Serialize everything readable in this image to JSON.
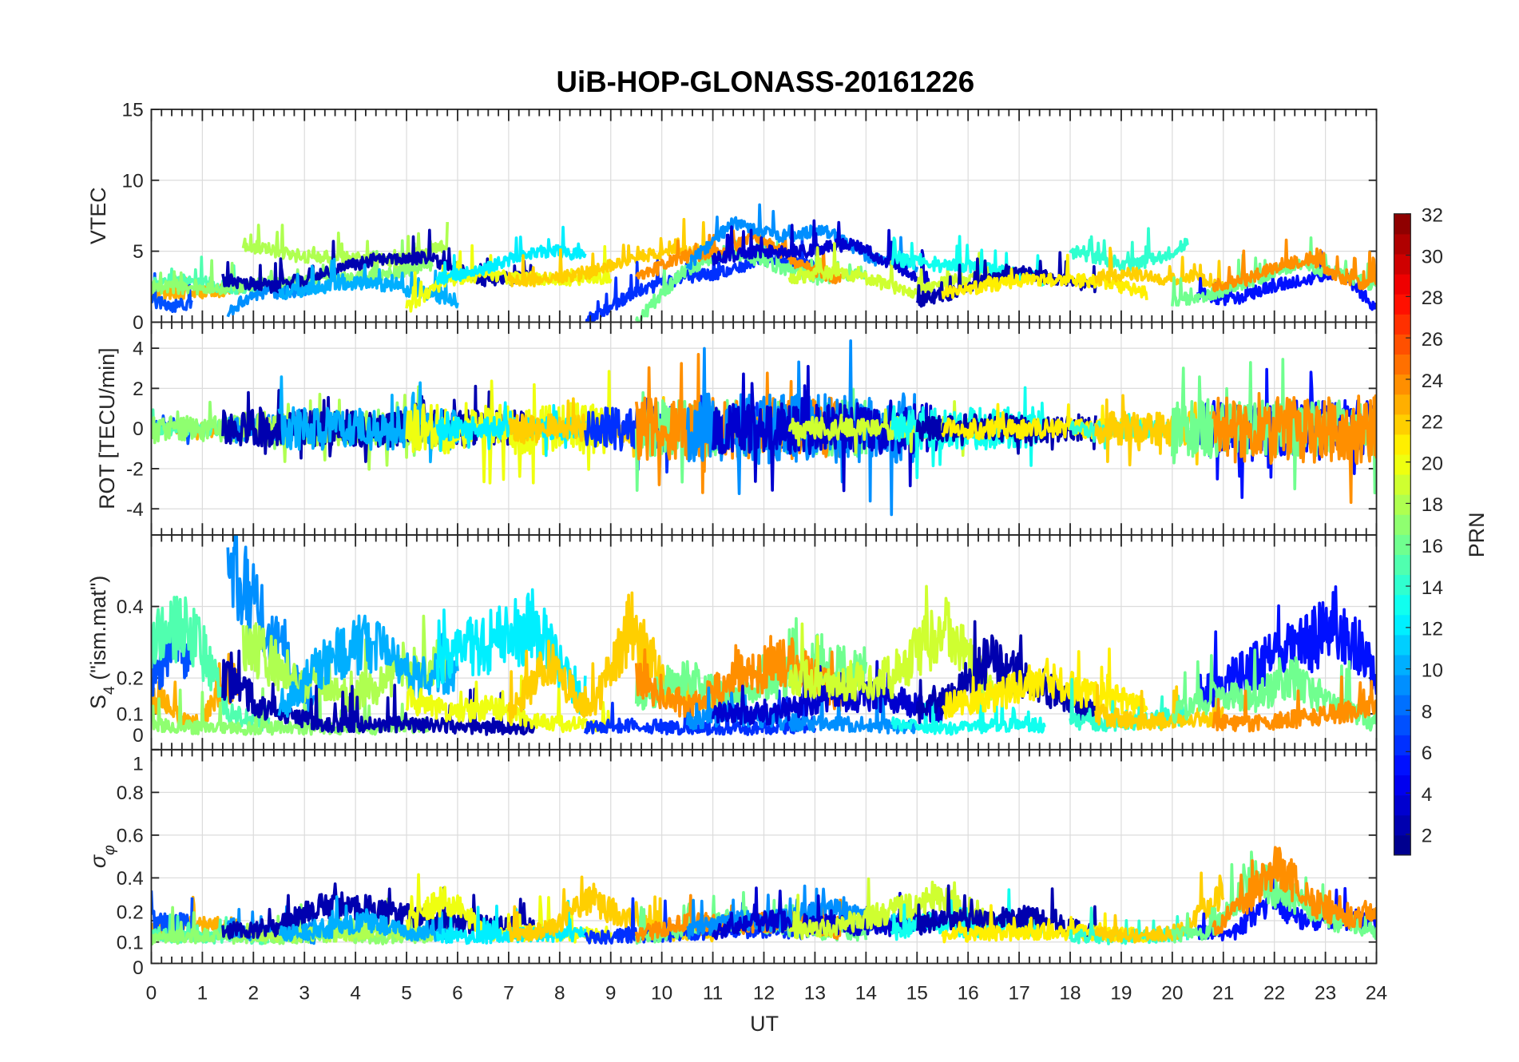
{
  "chart_data": {
    "type": "line",
    "title": "UiB-HOP-GLONASS-20161226",
    "xlabel": "UT",
    "xlim": [
      0,
      24
    ],
    "xticks": [
      "0",
      "1",
      "2",
      "3",
      "4",
      "5",
      "6",
      "7",
      "8",
      "9",
      "10",
      "11",
      "12",
      "13",
      "14",
      "15",
      "16",
      "17",
      "18",
      "19",
      "20",
      "21",
      "22",
      "23",
      "24"
    ],
    "grid": true,
    "panels": [
      {
        "key": "vtec",
        "ylabel": "VTEC",
        "ylim": [
          0,
          15
        ],
        "yticks": [
          {
            "v": 0,
            "t": "0"
          },
          {
            "v": 5,
            "t": "5"
          },
          {
            "v": 10,
            "t": "10"
          },
          {
            "v": 15,
            "t": "15"
          }
        ]
      },
      {
        "key": "rot",
        "ylabel": "ROT [TECU/min]",
        "ylim": [
          -5.3,
          5.3
        ],
        "yticks": [
          {
            "v": -4,
            "t": "-4"
          },
          {
            "v": -2,
            "t": "-2"
          },
          {
            "v": 0,
            "t": "0"
          },
          {
            "v": 2,
            "t": "2"
          },
          {
            "v": 4,
            "t": "4"
          }
        ]
      },
      {
        "key": "s4",
        "ylabel": "S4 (\"ism.mat\")",
        "ylabel_main": "S",
        "ylabel_sub": "4",
        "ylabel_rest": " (\"ism.mat\")",
        "ylim": [
          0,
          0.6
        ],
        "yticks": [
          {
            "v": 0,
            "t": "0"
          },
          {
            "v": 0.1,
            "t": "0.1"
          },
          {
            "v": 0.2,
            "t": "0.2"
          },
          {
            "v": 0.4,
            "t": "0.4"
          }
        ]
      },
      {
        "key": "sig",
        "ylabel": "σφ",
        "ylabel_main": "σ",
        "ylabel_sub": "φ",
        "ylim": [
          0,
          1
        ],
        "yticks": [
          {
            "v": 0,
            "t": "0"
          },
          {
            "v": 0.1,
            "t": "0.1"
          },
          {
            "v": 0.2,
            "t": "0.2"
          },
          {
            "v": 0.4,
            "t": "0.4"
          },
          {
            "v": 0.6,
            "t": "0.6"
          },
          {
            "v": 0.8,
            "t": "0.8"
          },
          {
            "v": 1,
            "t": "1"
          }
        ]
      }
    ],
    "colorbar": {
      "label": "PRN",
      "range": [
        1,
        32
      ],
      "ticks": [
        "2",
        "4",
        "6",
        "8",
        "10",
        "12",
        "14",
        "16",
        "18",
        "20",
        "22",
        "24",
        "26",
        "28",
        "30",
        "32"
      ]
    },
    "series": [
      {
        "prn": 23,
        "t": [
          0,
          1.7
        ],
        "vtec": [
          2,
          2.1,
          2.3
        ],
        "rot": 0.4,
        "s4": [
          0.15,
          0.07,
          0.2
        ],
        "sig": [
          0.15,
          0.18,
          0.17
        ]
      },
      {
        "prn": 7,
        "t": [
          0,
          0.8
        ],
        "vtec": [
          1.5,
          1.1,
          1.3
        ],
        "rot": 0.5,
        "s4": [
          0.2,
          0.3,
          0.25
        ],
        "sig": [
          0.2,
          0.18,
          0.2
        ]
      },
      {
        "prn": 15,
        "t": [
          0,
          2.3
        ],
        "vtec": [
          2.8,
          3,
          2.4,
          2.5
        ],
        "rot": 0.6,
        "s4": [
          0.3,
          0.35,
          0.1,
          0.07
        ],
        "sig": [
          0.14,
          0.12,
          0.13,
          0.12
        ]
      },
      {
        "prn": 17,
        "t": [
          0,
          5.5
        ],
        "vtec": [
          2.5,
          2.3,
          2.7,
          3,
          3.3,
          4
        ],
        "rot": 0.9,
        "s4": [
          0.07,
          0.06,
          0.06,
          0.06,
          0.06,
          0.07
        ],
        "sig": [
          0.12,
          0.13,
          0.12,
          0.13,
          0.12,
          0.13
        ]
      },
      {
        "prn": 9,
        "t": [
          1.5,
          3.2
        ],
        "vtec": [
          0.8,
          2,
          2.1,
          2.5
        ],
        "rot": 1,
        "s4": [
          0.55,
          0.4,
          0.25,
          0.12
        ],
        "sig": [
          0.16,
          0.14,
          0.14,
          0.12
        ]
      },
      {
        "prn": 18,
        "t": [
          1.8,
          5.8
        ],
        "vtec": [
          5.5,
          4.7,
          4.5,
          4.3,
          5.5
        ],
        "rot": 1.2,
        "s4": [
          0.3,
          0.2,
          0.15,
          0.2,
          0.25
        ],
        "sig": [
          0.15,
          0.13,
          0.14,
          0.15,
          0.14
        ]
      },
      {
        "prn": 2,
        "t": [
          1.4,
          7.5
        ],
        "vtec": [
          3,
          2.5,
          3.5,
          4.5,
          4.5,
          3,
          3.2
        ],
        "rot": 1.3,
        "s4": [
          0.2,
          0.1,
          0.07,
          0.07,
          0.07,
          0.06,
          0.06
        ],
        "sig": [
          0.15,
          0.17,
          0.27,
          0.25,
          0.2,
          0.18,
          0.17
        ]
      },
      {
        "prn": 10,
        "t": [
          2.5,
          6
        ],
        "vtec": [
          2,
          2.5,
          2.8,
          2.2,
          1.5
        ],
        "rot": 1.5,
        "s4": [
          0.1,
          0.25,
          0.3,
          0.2,
          0.2
        ],
        "sig": [
          0.14,
          0.15,
          0.2,
          0.14,
          0.13
        ]
      },
      {
        "prn": 20,
        "t": [
          5,
          9
        ],
        "vtec": [
          1,
          3,
          3.3,
          3,
          3,
          3.2
        ],
        "rot": 1.8,
        "s4": [
          0.15,
          0.1,
          0.12,
          0.08,
          0.07,
          0.07
        ],
        "sig": [
          0.2,
          0.3,
          0.14,
          0.14,
          0.13,
          0.14
        ]
      },
      {
        "prn": 12,
        "t": [
          5.6,
          8.5
        ],
        "vtec": [
          3,
          3.5,
          4.5,
          5,
          4.8
        ],
        "rot": 0.8,
        "s4": [
          0.25,
          0.3,
          0.35,
          0.12
        ],
        "sig": [
          0.13,
          0.12,
          0.14,
          0.13
        ]
      },
      {
        "prn": 22,
        "t": [
          7,
          11
        ],
        "vtec": [
          3,
          3,
          3.5,
          4.5,
          5,
          5
        ],
        "rot": 1,
        "s4": [
          0.1,
          0.25,
          0.1,
          0.35,
          0.15,
          0.12
        ],
        "sig": [
          0.13,
          0.16,
          0.3,
          0.2,
          0.14,
          0.14
        ]
      },
      {
        "prn": 6,
        "t": [
          8.5,
          13
        ],
        "vtec": [
          0,
          2,
          3,
          3.5,
          4.5,
          4
        ],
        "rot": 1.6,
        "s4": [
          0.06,
          0.07,
          0.06,
          0.06,
          0.06,
          0.07
        ],
        "sig": [
          0.12,
          0.13,
          0.14,
          0.15,
          0.16,
          0.15
        ]
      },
      {
        "prn": 16,
        "t": [
          9.5,
          14
        ],
        "vtec": [
          0,
          3.5,
          5,
          4,
          3,
          3.5
        ],
        "rot": 2,
        "s4": [
          0.15,
          0.2,
          0.15,
          0.2,
          0.25,
          0.2
        ],
        "sig": [
          0.12,
          0.15,
          0.2,
          0.18,
          0.15,
          0.14
        ]
      },
      {
        "prn": 24,
        "t": [
          9.5,
          13.5
        ],
        "vtec": [
          3,
          4.5,
          5,
          6,
          4,
          3
        ],
        "rot": 2.2,
        "s4": [
          0.2,
          0.12,
          0.2,
          0.25,
          0.15
        ],
        "sig": [
          0.13,
          0.2,
          0.18,
          0.2,
          0.15
        ]
      },
      {
        "prn": 9,
        "t": [
          10.5,
          15
        ],
        "vtec": [
          4,
          7,
          6,
          6.5,
          4.5,
          4
        ],
        "rot": 2.5,
        "s4": [
          0.08,
          0.1,
          0.08,
          0.07,
          0.07,
          0.06
        ],
        "sig": [
          0.15,
          0.2,
          0.2,
          0.25,
          0.2,
          0.18
        ]
      },
      {
        "prn": 3,
        "t": [
          11,
          15.5
        ],
        "vtec": [
          4.5,
          5,
          5,
          5.5,
          4,
          2
        ],
        "rot": 1.8,
        "s4": [
          0.1,
          0.1,
          0.15,
          0.15,
          0.1
        ],
        "sig": [
          0.15,
          0.2,
          0.18,
          0.17,
          0.2
        ]
      },
      {
        "prn": 19,
        "t": [
          12.5,
          16.5
        ],
        "vtec": [
          3,
          3.5,
          3,
          2,
          3,
          3
        ],
        "rot": 0.8,
        "s4": [
          0.2,
          0.18,
          0.2,
          0.35,
          0.15
        ],
        "sig": [
          0.15,
          0.17,
          0.25,
          0.3,
          0.15
        ]
      },
      {
        "prn": 13,
        "t": [
          14.5,
          17.5
        ],
        "vtec": [
          4.5,
          4,
          4,
          3.5,
          3
        ],
        "rot": 1.5,
        "s4": [
          0.07,
          0.06,
          0.06,
          0.07,
          0.07
        ],
        "sig": [
          0.14,
          0.2,
          0.16,
          0.18,
          0.16
        ]
      },
      {
        "prn": 2,
        "t": [
          15,
          18.5
        ],
        "vtec": [
          1.5,
          2,
          3,
          3.5,
          3,
          2.5
        ],
        "rot": 1,
        "s4": [
          0.1,
          0.15,
          0.25,
          0.2,
          0.15,
          0.1
        ],
        "sig": [
          0.18,
          0.2,
          0.2,
          0.22,
          0.18,
          0.15
        ]
      },
      {
        "prn": 21,
        "t": [
          15.5,
          19.5
        ],
        "vtec": [
          2,
          2.5,
          3,
          3,
          2.8,
          2
        ],
        "rot": 0.7,
        "s4": [
          0.12,
          0.15,
          0.2,
          0.15,
          0.12
        ],
        "sig": [
          0.13,
          0.14,
          0.15,
          0.14,
          0.13
        ]
      },
      {
        "prn": 14,
        "t": [
          18,
          20.3
        ],
        "vtec": [
          5,
          4.5,
          4,
          4.5,
          5.5
        ],
        "rot": 0.6,
        "s4": [
          0.08,
          0.07,
          0.08,
          0.1
        ],
        "sig": [
          0.13,
          0.12,
          0.13,
          0.14
        ]
      },
      {
        "prn": 22,
        "t": [
          18.5,
          21
        ],
        "vtec": [
          3,
          3.5,
          3,
          3.2,
          2.5
        ],
        "rot": 1.2,
        "s4": [
          0.1,
          0.08,
          0.08,
          0.1
        ],
        "sig": [
          0.14,
          0.13,
          0.15,
          0.35
        ]
      },
      {
        "prn": 5,
        "t": [
          20.5,
          24
        ],
        "vtec": [
          2,
          1.5,
          2.5,
          3,
          3.5,
          1
        ],
        "rot": 2,
        "s4": [
          0.15,
          0.2,
          0.25,
          0.3,
          0.35,
          0.2
        ],
        "sig": [
          0.15,
          0.14,
          0.3,
          0.2,
          0.2,
          0.2
        ]
      },
      {
        "prn": 16,
        "t": [
          20,
          24
        ],
        "vtec": [
          1.5,
          2,
          3,
          4,
          3.5,
          2.5
        ],
        "rot": 2,
        "s4": [
          0.1,
          0.15,
          0.15,
          0.2,
          0.12,
          0.07
        ],
        "sig": [
          0.13,
          0.15,
          0.4,
          0.3,
          0.2,
          0.15
        ]
      },
      {
        "prn": 24,
        "t": [
          20.8,
          24
        ],
        "vtec": [
          2.5,
          3,
          4,
          4.5,
          3,
          2.5
        ],
        "rot": 2.5,
        "s4": [
          0.08,
          0.07,
          0.08,
          0.09,
          0.1,
          0.13
        ],
        "sig": [
          0.15,
          0.3,
          0.45,
          0.3,
          0.2,
          0.25
        ]
      }
    ]
  }
}
